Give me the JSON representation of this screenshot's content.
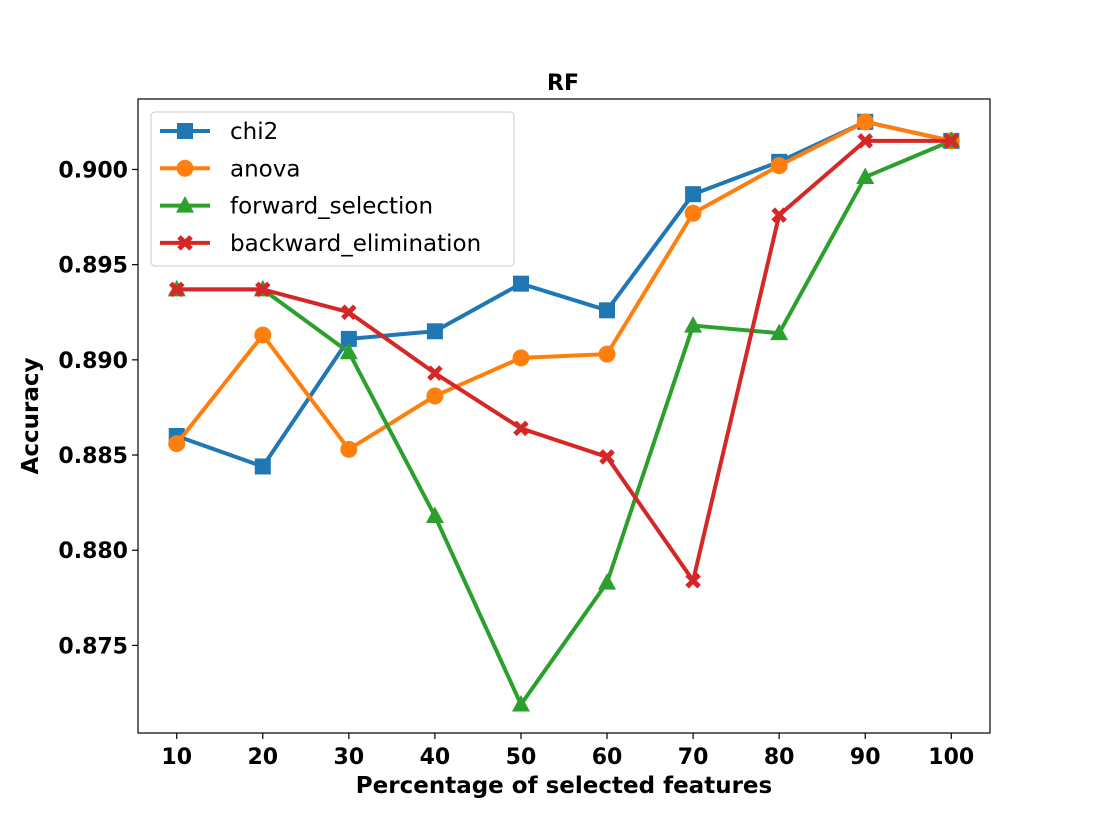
{
  "chart_data": {
    "type": "line",
    "title": "RF",
    "xlabel": "Percentage of selected features",
    "ylabel": "Accuracy",
    "x": [
      10,
      20,
      30,
      40,
      50,
      60,
      70,
      80,
      90,
      100
    ],
    "xlim": [
      5.5,
      104.5
    ],
    "ylim": [
      0.8704,
      0.9037
    ],
    "yticks": [
      0.875,
      0.88,
      0.885,
      0.89,
      0.895,
      0.9
    ],
    "ytick_labels": [
      "0.875",
      "0.880",
      "0.885",
      "0.890",
      "0.895",
      "0.900"
    ],
    "xtick_labels": [
      "10",
      "20",
      "30",
      "40",
      "50",
      "60",
      "70",
      "80",
      "90",
      "100"
    ],
    "legend_position": "top-left",
    "grid": false,
    "series": [
      {
        "name": "chi2",
        "color": "#1f77b4",
        "marker": "square",
        "values": [
          0.886,
          0.8844,
          0.8911,
          0.8915,
          0.894,
          0.8926,
          0.8987,
          0.9004,
          0.9025,
          0.9015
        ]
      },
      {
        "name": "anova",
        "color": "#ff7f0e",
        "marker": "circle",
        "values": [
          0.8856,
          0.8913,
          0.8853,
          0.8881,
          0.8901,
          0.8903,
          0.8977,
          0.9002,
          0.9025,
          0.9015
        ]
      },
      {
        "name": "forward_selection",
        "color": "#2ca02c",
        "marker": "triangle",
        "values": [
          0.8937,
          0.8937,
          0.8904,
          0.8818,
          0.8719,
          0.8783,
          0.8918,
          0.8914,
          0.8996,
          0.9015
        ]
      },
      {
        "name": "backward_elimination",
        "color": "#d62728",
        "marker": "x",
        "values": [
          0.8937,
          0.8937,
          0.8925,
          0.8893,
          0.8864,
          0.8849,
          0.8784,
          0.8976,
          0.9015,
          0.9015
        ]
      }
    ]
  }
}
